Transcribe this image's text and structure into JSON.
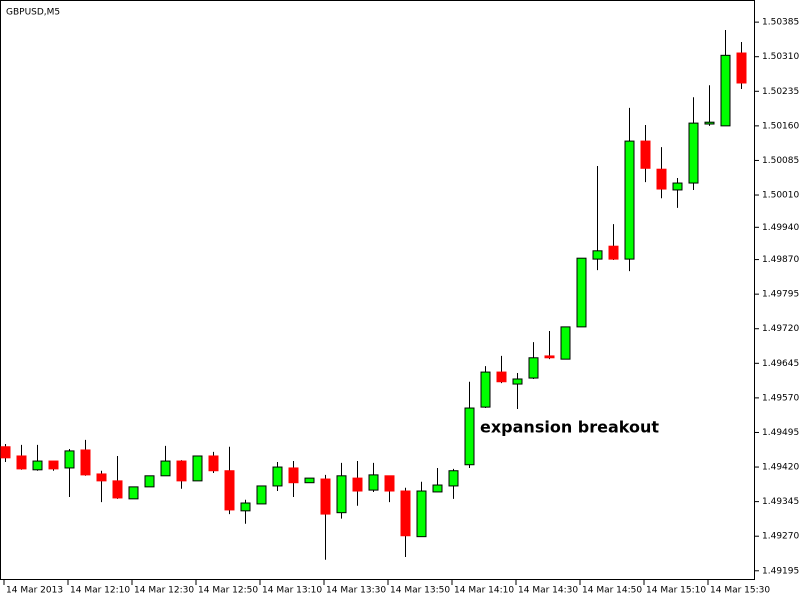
{
  "chart_data": {
    "type": "candlestick",
    "title": "GBPUSD,M5",
    "annotation": "expansion breakout",
    "categories": [
      "14 Mar 2013",
      null,
      null,
      null,
      "14 Mar 12:10",
      null,
      null,
      null,
      "14 Mar 12:30",
      null,
      null,
      null,
      "14 Mar 12:50",
      null,
      null,
      null,
      "14 Mar 13:10",
      null,
      null,
      null,
      "14 Mar 13:30",
      null,
      null,
      null,
      "14 Mar 13:50",
      null,
      null,
      null,
      "14 Mar 14:10",
      null,
      null,
      null,
      "14 Mar 14:30",
      null,
      null,
      null,
      "14 Mar 14:50",
      null,
      null,
      null,
      "14 Mar 15:10",
      null,
      null,
      null,
      "14 Mar 15:30",
      null,
      null
    ],
    "open": [
      1.49464,
      1.49444,
      1.49414,
      1.49433,
      1.49418,
      1.49457,
      1.49405,
      1.4939,
      1.49351,
      1.49377,
      1.49401,
      1.49433,
      1.4939,
      1.49444,
      1.49412,
      1.49325,
      1.4934,
      1.49379,
      1.49418,
      1.49386,
      1.49394,
      1.49321,
      1.49396,
      1.4937,
      1.49401,
      1.49368,
      1.49269,
      1.49366,
      1.49379,
      1.49425,
      1.4955,
      1.49626,
      1.496,
      1.49613,
      1.49661,
      1.49654,
      1.49724,
      1.49871,
      1.49899,
      1.49871,
      1.50127,
      1.50066,
      1.50021,
      1.50036,
      1.50164,
      1.5016,
      1.50318
    ],
    "high": [
      1.4947,
      1.49468,
      1.49468,
      1.49433,
      1.49459,
      1.49479,
      1.49412,
      1.49444,
      1.49377,
      1.49401,
      1.49466,
      1.49435,
      1.49444,
      1.49453,
      1.49464,
      1.49349,
      1.49379,
      1.49431,
      1.49433,
      1.49396,
      1.49403,
      1.49429,
      1.49433,
      1.49429,
      1.49401,
      1.49375,
      1.49388,
      1.49418,
      1.49416,
      1.49605,
      1.49639,
      1.49661,
      1.49624,
      1.49691,
      1.49715,
      1.49724,
      1.49873,
      1.50073,
      1.49947,
      1.50199,
      1.50162,
      1.50114,
      1.50047,
      1.50222,
      1.50248,
      1.50368,
      1.50342
    ],
    "low": [
      1.49431,
      1.49414,
      1.49412,
      1.49412,
      1.49355,
      1.49401,
      1.49344,
      1.49351,
      1.49351,
      1.49377,
      1.49401,
      1.49373,
      1.4939,
      1.49407,
      1.49318,
      1.49297,
      1.4934,
      1.49368,
      1.49355,
      1.49386,
      1.49219,
      1.49308,
      1.49336,
      1.49366,
      1.49344,
      1.49225,
      1.49269,
      1.49366,
      1.49351,
      1.49418,
      1.49548,
      1.49602,
      1.49546,
      1.49611,
      1.49654,
      1.49654,
      1.49724,
      1.49847,
      1.49869,
      1.49845,
      1.50038,
      1.50003,
      1.49982,
      1.50021,
      1.5016,
      1.5016,
      1.5024
    ],
    "close": [
      1.4944,
      1.49416,
      1.49433,
      1.49416,
      1.49455,
      1.49403,
      1.4939,
      1.49353,
      1.49377,
      1.49401,
      1.49433,
      1.4939,
      1.49444,
      1.49412,
      1.49327,
      1.49342,
      1.49379,
      1.4942,
      1.49386,
      1.49396,
      1.49318,
      1.49401,
      1.49368,
      1.49403,
      1.49368,
      1.49271,
      1.49368,
      1.49381,
      1.49412,
      1.49548,
      1.49626,
      1.49605,
      1.49611,
      1.49657,
      1.49657,
      1.49724,
      1.49873,
      1.49889,
      1.49871,
      1.50127,
      1.50068,
      1.50023,
      1.50036,
      1.50166,
      1.50168,
      1.50313,
      1.50253
    ],
    "up_color": "#00ff00",
    "down_color": "#ff0000",
    "ylim": [
      1.49175,
      1.50433
    ],
    "yticks": [
      1.50385,
      {
        "value": 1.5031,
        "label": "1.50310"
      },
      1.50235,
      {
        "value": 1.5016,
        "label": "1.50160"
      },
      1.50085,
      {
        "value": 1.5001,
        "label": "1.50010"
      },
      {
        "value": 1.4994,
        "label": "1.49940"
      },
      {
        "value": 1.4987,
        "label": "1.49870"
      },
      1.49795,
      {
        "value": 1.4972,
        "label": "1.49720"
      },
      1.49645,
      {
        "value": 1.4957,
        "label": "1.49570"
      },
      1.49495,
      {
        "value": 1.4942,
        "label": "1.49420"
      },
      1.49345,
      {
        "value": 1.4927,
        "label": "1.49270"
      },
      1.49195
    ],
    "grid": false
  }
}
